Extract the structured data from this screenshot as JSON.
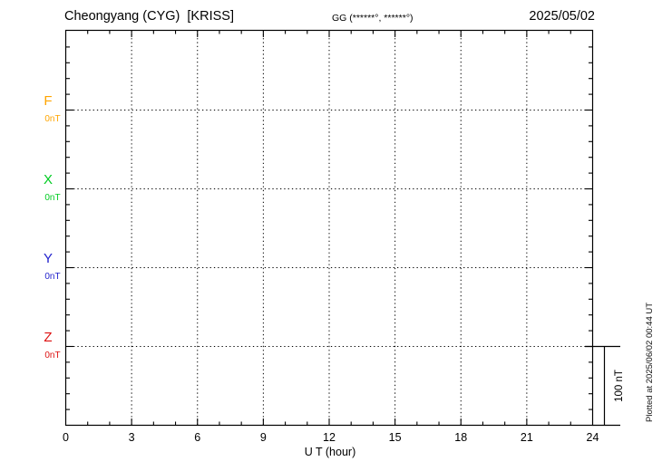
{
  "header": {
    "station": "Cheongyang (CYG)  [KRISS]",
    "gg_coordinates": "GG (******°, ******°)",
    "date": "2025/05/02"
  },
  "chart_data": {
    "type": "line",
    "title": "Cheongyang (CYG) [KRISS] magnetogram 2025/05/02",
    "xlabel": "U T (hour)",
    "ylabel": "nT",
    "x_range": [
      0,
      24
    ],
    "x_major_ticks": [
      0,
      3,
      6,
      9,
      12,
      15,
      18,
      21,
      24
    ],
    "x_minor_step_hours": 1,
    "y_minor_step_nT": 20,
    "row_spacing_nT": 100,
    "grid": {
      "vertical_dotted_at_hours": [
        3,
        6,
        9,
        12,
        15,
        18,
        21
      ],
      "horizontal_dotted_at": "each channel zero line",
      "style": "dotted"
    },
    "channels": [
      {
        "id": "F",
        "label": "F",
        "zero_label": "0nT",
        "color": "#FFA500",
        "values": [],
        "note": "no trace visible (flat/no data)"
      },
      {
        "id": "X",
        "label": "X",
        "zero_label": "0nT",
        "color": "#00CC22",
        "values": [],
        "note": "no trace visible (flat/no data)"
      },
      {
        "id": "Y",
        "label": "Y",
        "zero_label": "0nT",
        "color": "#2222CC",
        "values": [],
        "note": "no trace visible (flat/no data)"
      },
      {
        "id": "Z",
        "label": "Z",
        "zero_label": "0nT",
        "color": "#DD1111",
        "values": [],
        "note": "no trace visible (flat/no data)"
      }
    ],
    "scale_bar": {
      "label": "100 nT",
      "nT": 100
    },
    "plotted_note": "Plotted at 2025/06/02 00:44 UT",
    "frame_color": "#000000",
    "legend": "none"
  }
}
